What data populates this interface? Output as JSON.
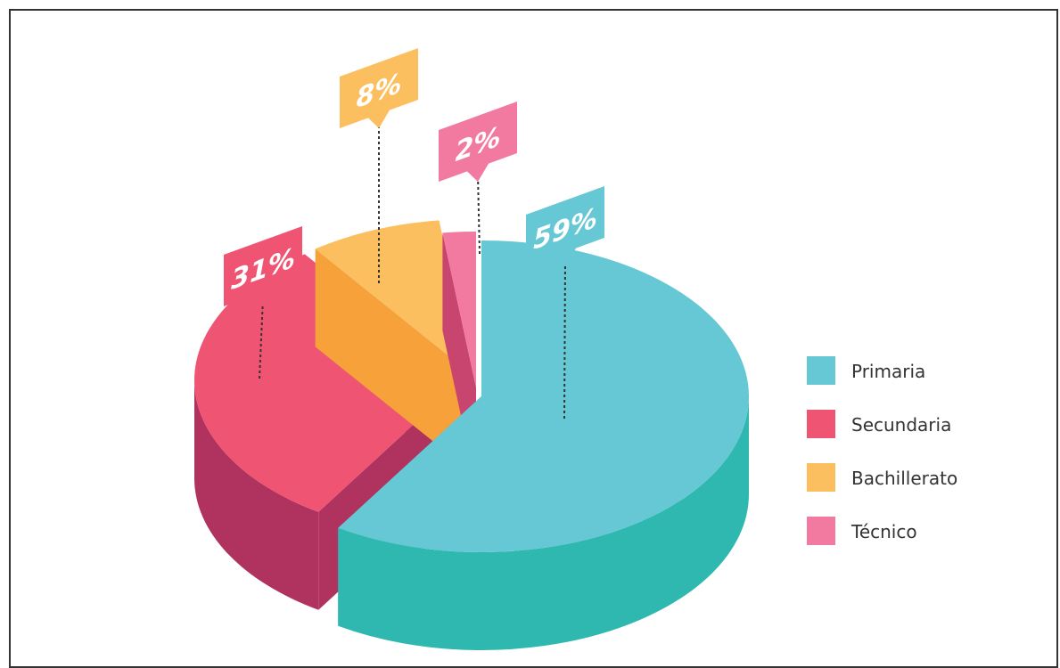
{
  "chart_data": {
    "type": "pie",
    "style": "3d-isometric",
    "categories": [
      "Primaria",
      "Secundaria",
      "Bachillerato",
      "Técnico"
    ],
    "values": [
      59,
      31,
      8,
      2
    ],
    "labels": [
      "59%",
      "31%",
      "8%",
      "2%"
    ],
    "colors": {
      "Primaria": "#66c8d4",
      "Secundaria": "#f05473",
      "Bachillerato": "#fbbf5f",
      "Técnico": "#f27aa1"
    },
    "side_colors": {
      "Primaria": "#2fb8b0",
      "Secundaria": "#b0325e",
      "Bachillerato": "#f7a13a",
      "Técnico": "#c8456f"
    },
    "legend_position": "right"
  }
}
